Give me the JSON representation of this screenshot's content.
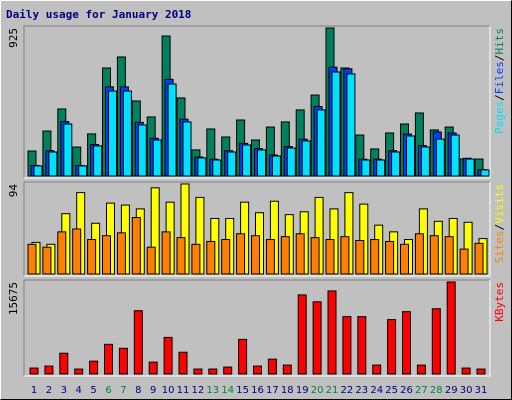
{
  "chart_data": [
    {
      "type": "bar",
      "title": "Daily usage for January 2018",
      "legend_separator": "/",
      "ylim": [
        0,
        925
      ],
      "yticks": [
        925
      ],
      "series": [
        {
          "name": "Hits",
          "color": "#00805c",
          "values": [
            156,
            281,
            419,
            181,
            263,
            675,
            744,
            469,
            369,
            875,
            488,
            163,
            294,
            244,
            350,
            225,
            306,
            338,
            413,
            506,
            925,
            675,
            256,
            169,
            269,
            325,
            394,
            288,
            306,
            106,
            106
          ]
        },
        {
          "name": "Files",
          "color": "#0040ff",
          "values": [
            66,
            158,
            340,
            66,
            197,
            557,
            557,
            335,
            236,
            604,
            355,
            119,
            105,
            158,
            204,
            171,
            131,
            184,
            230,
            434,
            680,
            670,
            105,
            105,
            158,
            262,
            190,
            275,
            269,
            111,
            40
          ]
        },
        {
          "name": "Pages",
          "color": "#00e0ff",
          "values": [
            63,
            150,
            325,
            63,
            188,
            531,
            531,
            319,
            225,
            575,
            338,
            113,
            100,
            150,
            194,
            163,
            125,
            175,
            219,
            413,
            650,
            638,
            100,
            100,
            150,
            250,
            181,
            231,
            256,
            106,
            38
          ]
        }
      ]
    },
    {
      "type": "bar",
      "legend_separator": "/",
      "ylim": [
        0,
        94
      ],
      "yticks": [
        94
      ],
      "series": [
        {
          "name": "Visits",
          "color": "#ffff00",
          "values": [
            33,
            31,
            63,
            85,
            53,
            74,
            72,
            68,
            90,
            75,
            94,
            80,
            58,
            58,
            75,
            64,
            76,
            62,
            65,
            80,
            68,
            85,
            73,
            51,
            44,
            36,
            68,
            55,
            58,
            54,
            37
          ]
        },
        {
          "name": "Sites",
          "color": "#ff8000",
          "values": [
            31,
            28,
            44,
            47,
            36,
            40,
            43,
            59,
            28,
            44,
            38,
            31,
            34,
            36,
            42,
            40,
            36,
            39,
            42,
            38,
            36,
            39,
            35,
            36,
            34,
            31,
            42,
            40,
            39,
            26,
            32
          ]
        }
      ]
    },
    {
      "type": "bar",
      "ylim": [
        0,
        15675
      ],
      "yticks": [
        15675
      ],
      "categories": [
        "1",
        "2",
        "3",
        "4",
        "5",
        "6",
        "7",
        "8",
        "9",
        "10",
        "11",
        "12",
        "13",
        "14",
        "15",
        "16",
        "17",
        "18",
        "19",
        "20",
        "21",
        "22",
        "23",
        "24",
        "25",
        "26",
        "27",
        "28",
        "29",
        "30",
        "31"
      ],
      "category_colors": [
        "#000080",
        "#000080",
        "#000080",
        "#000080",
        "#000080",
        "#008040",
        "#008040",
        "#000080",
        "#000080",
        "#000080",
        "#000080",
        "#000080",
        "#008040",
        "#008040",
        "#000080",
        "#000080",
        "#000080",
        "#000080",
        "#000080",
        "#008040",
        "#008040",
        "#000080",
        "#000080",
        "#000080",
        "#000080",
        "#000080",
        "#008040",
        "#008040",
        "#000080",
        "#000080",
        "#000080"
      ],
      "series": [
        {
          "name": "KBytes",
          "color": "#ff0000",
          "values": [
            1011,
            1348,
            3539,
            843,
            2190,
            5056,
            4381,
            10784,
            2022,
            6234,
            3707,
            843,
            843,
            1180,
            5897,
            1348,
            2528,
            1517,
            13480,
            12301,
            14154,
            9773,
            9773,
            1517,
            9268,
            10616,
            1517,
            11121,
            15675,
            1011,
            843
          ]
        }
      ]
    }
  ]
}
